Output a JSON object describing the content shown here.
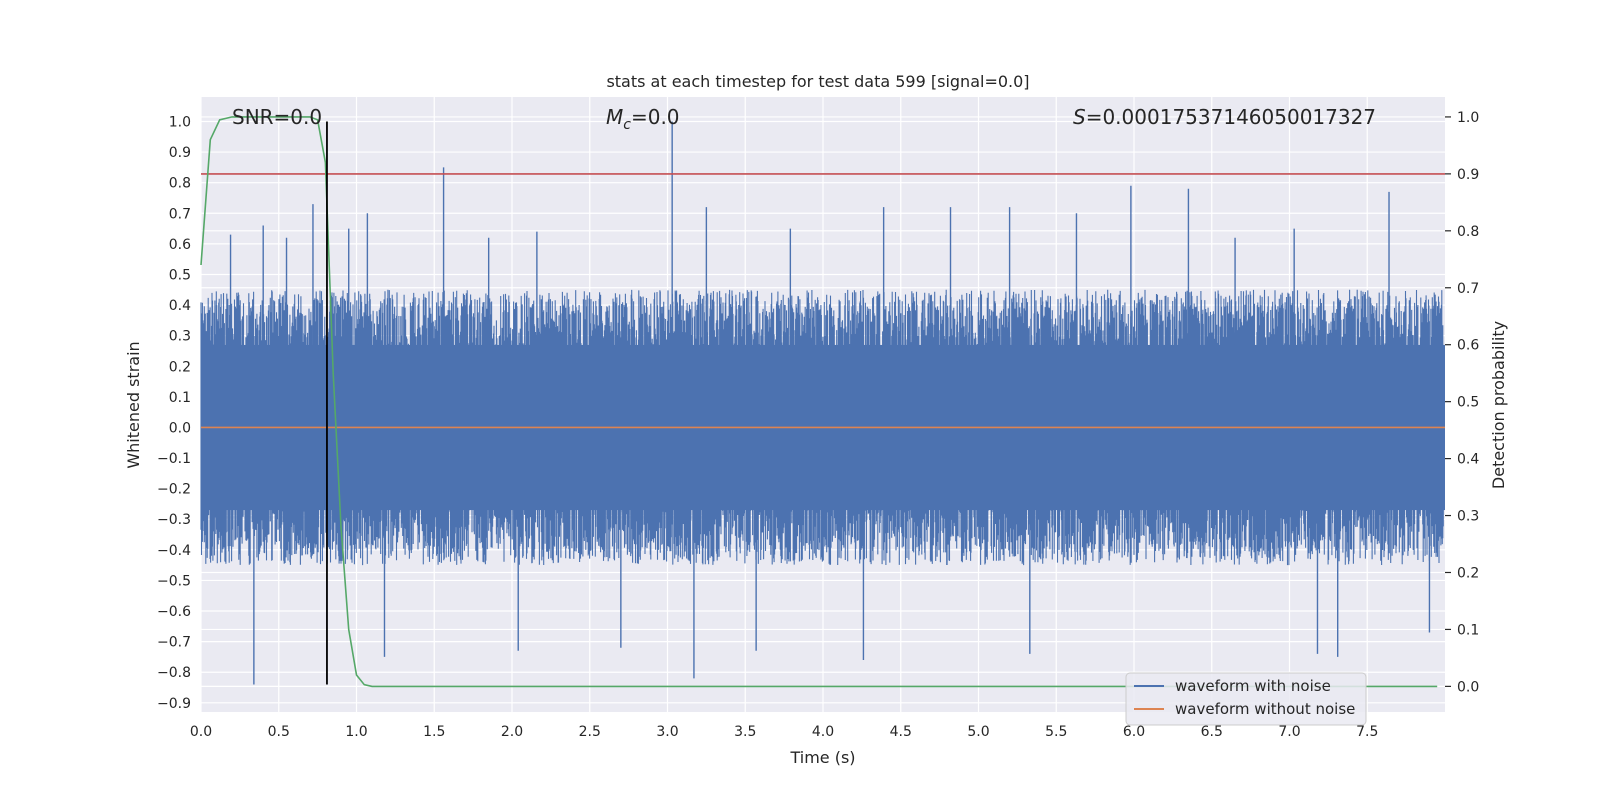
{
  "chart_data": {
    "type": "line",
    "title": "stats at each timestep for test data 599 [signal=0.0]",
    "xlabel": "Time (s)",
    "ylabel": "Whitened strain",
    "y2label": "Detection probability",
    "xlim": [
      0.0,
      8.0
    ],
    "ylim": [
      -0.93,
      1.08
    ],
    "y2lim": [
      -0.045,
      1.035
    ],
    "grid": true,
    "x_ticks": [
      0.0,
      0.5,
      1.0,
      1.5,
      2.0,
      2.5,
      3.0,
      3.5,
      4.0,
      4.5,
      5.0,
      5.5,
      6.0,
      6.5,
      7.0,
      7.5
    ],
    "x_tick_labels": [
      "0.0",
      "0.5",
      "1.0",
      "1.5",
      "2.0",
      "2.5",
      "3.0",
      "3.5",
      "4.0",
      "4.5",
      "5.0",
      "5.5",
      "6.0",
      "6.5",
      "7.0",
      "7.5"
    ],
    "y_ticks": [
      1.0,
      0.9,
      0.8,
      0.7,
      0.6,
      0.5,
      0.4,
      0.3,
      0.2,
      0.1,
      0.0,
      -0.1,
      -0.2,
      -0.3,
      -0.4,
      -0.5,
      -0.6,
      -0.7,
      -0.8,
      -0.9
    ],
    "y_tick_labels": [
      "1.0",
      "0.9",
      "0.8",
      "0.7",
      "0.6",
      "0.5",
      "0.4",
      "0.3",
      "0.2",
      "0.1",
      "0.0",
      "−0.1",
      "−0.2",
      "−0.3",
      "−0.4",
      "−0.5",
      "−0.6",
      "−0.7",
      "−0.8",
      "−0.9"
    ],
    "y2_ticks": [
      1.0,
      0.9,
      0.8,
      0.7,
      0.6,
      0.5,
      0.4,
      0.3,
      0.2,
      0.1,
      0.0
    ],
    "y2_tick_labels": [
      "1.0",
      "0.9",
      "0.8",
      "0.7",
      "0.6",
      "0.5",
      "0.4",
      "0.3",
      "0.2",
      "0.1",
      "0.0"
    ],
    "annotations": {
      "snr": "SNR=0.0",
      "mc_symbol": "M",
      "mc_sub": "c",
      "mc_value": "=0.0",
      "s_symbol": "S",
      "s_value": "=0.00017537146050017327"
    },
    "noise_band": {
      "typical_max": 0.45,
      "typical_min": -0.45,
      "color": "#4c72b0"
    },
    "noise_spikes": [
      {
        "x": 0.1,
        "y": 0.4
      },
      {
        "x": 0.19,
        "y": 0.63
      },
      {
        "x": 0.34,
        "y": -0.84
      },
      {
        "x": 0.4,
        "y": 0.66
      },
      {
        "x": 0.55,
        "y": 0.62
      },
      {
        "x": 0.72,
        "y": 0.73
      },
      {
        "x": 0.95,
        "y": 0.65
      },
      {
        "x": 1.07,
        "y": 0.7
      },
      {
        "x": 1.18,
        "y": -0.75
      },
      {
        "x": 1.56,
        "y": 0.85
      },
      {
        "x": 1.85,
        "y": 0.62
      },
      {
        "x": 2.04,
        "y": -0.73
      },
      {
        "x": 2.16,
        "y": 0.64
      },
      {
        "x": 2.7,
        "y": -0.72
      },
      {
        "x": 3.03,
        "y": 1.0
      },
      {
        "x": 3.17,
        "y": -0.82
      },
      {
        "x": 3.25,
        "y": 0.72
      },
      {
        "x": 3.57,
        "y": -0.73
      },
      {
        "x": 3.79,
        "y": 0.65
      },
      {
        "x": 4.26,
        "y": -0.76
      },
      {
        "x": 4.39,
        "y": 0.72
      },
      {
        "x": 4.82,
        "y": 0.72
      },
      {
        "x": 5.2,
        "y": 0.72
      },
      {
        "x": 5.33,
        "y": -0.74
      },
      {
        "x": 5.63,
        "y": 0.7
      },
      {
        "x": 5.98,
        "y": 0.79
      },
      {
        "x": 6.35,
        "y": 0.78
      },
      {
        "x": 6.65,
        "y": 0.62
      },
      {
        "x": 7.03,
        "y": 0.65
      },
      {
        "x": 7.18,
        "y": -0.74
      },
      {
        "x": 7.31,
        "y": -0.75
      },
      {
        "x": 7.64,
        "y": 0.77
      },
      {
        "x": 7.9,
        "y": -0.67
      }
    ],
    "series": [
      {
        "name": "waveform with noise",
        "color": "#4c72b0",
        "axis": "left",
        "note": "dense whitened noise around 0, max 1.00 near t=3.03s"
      },
      {
        "name": "waveform without noise",
        "color": "#dd8452",
        "axis": "left",
        "x": [
          0.0,
          8.0
        ],
        "y": [
          0.0,
          0.0
        ]
      },
      {
        "name": "detection probability",
        "color": "#55a868",
        "axis": "right",
        "x": [
          0.0,
          0.06,
          0.12,
          0.2,
          0.3,
          0.5,
          0.7,
          0.75,
          0.8,
          0.85,
          0.9,
          0.95,
          1.0,
          1.05,
          1.1,
          1.5,
          2.0,
          3.0,
          4.0,
          5.0,
          6.0,
          7.0,
          7.95
        ],
        "y": [
          0.74,
          0.96,
          0.995,
          1.0,
          1.0,
          1.0,
          1.0,
          0.995,
          0.92,
          0.55,
          0.28,
          0.1,
          0.02,
          0.003,
          0.0,
          0.0,
          0.0,
          0.0,
          0.0,
          0.0,
          0.0,
          0.0,
          0.0
        ]
      },
      {
        "name": "threshold",
        "color": "#c44e52",
        "axis": "right",
        "x": [
          0.0,
          8.0
        ],
        "y": [
          0.9,
          0.9
        ]
      },
      {
        "name": "detection time marker",
        "color": "#000000",
        "axis": "left",
        "x": [
          0.81,
          0.81
        ],
        "y": [
          -0.84,
          1.0
        ]
      }
    ],
    "legend": {
      "position": "lower-right",
      "entries": [
        {
          "label": "waveform with noise",
          "color": "#4c72b0"
        },
        {
          "label": "waveform without noise",
          "color": "#dd8452"
        }
      ]
    }
  }
}
